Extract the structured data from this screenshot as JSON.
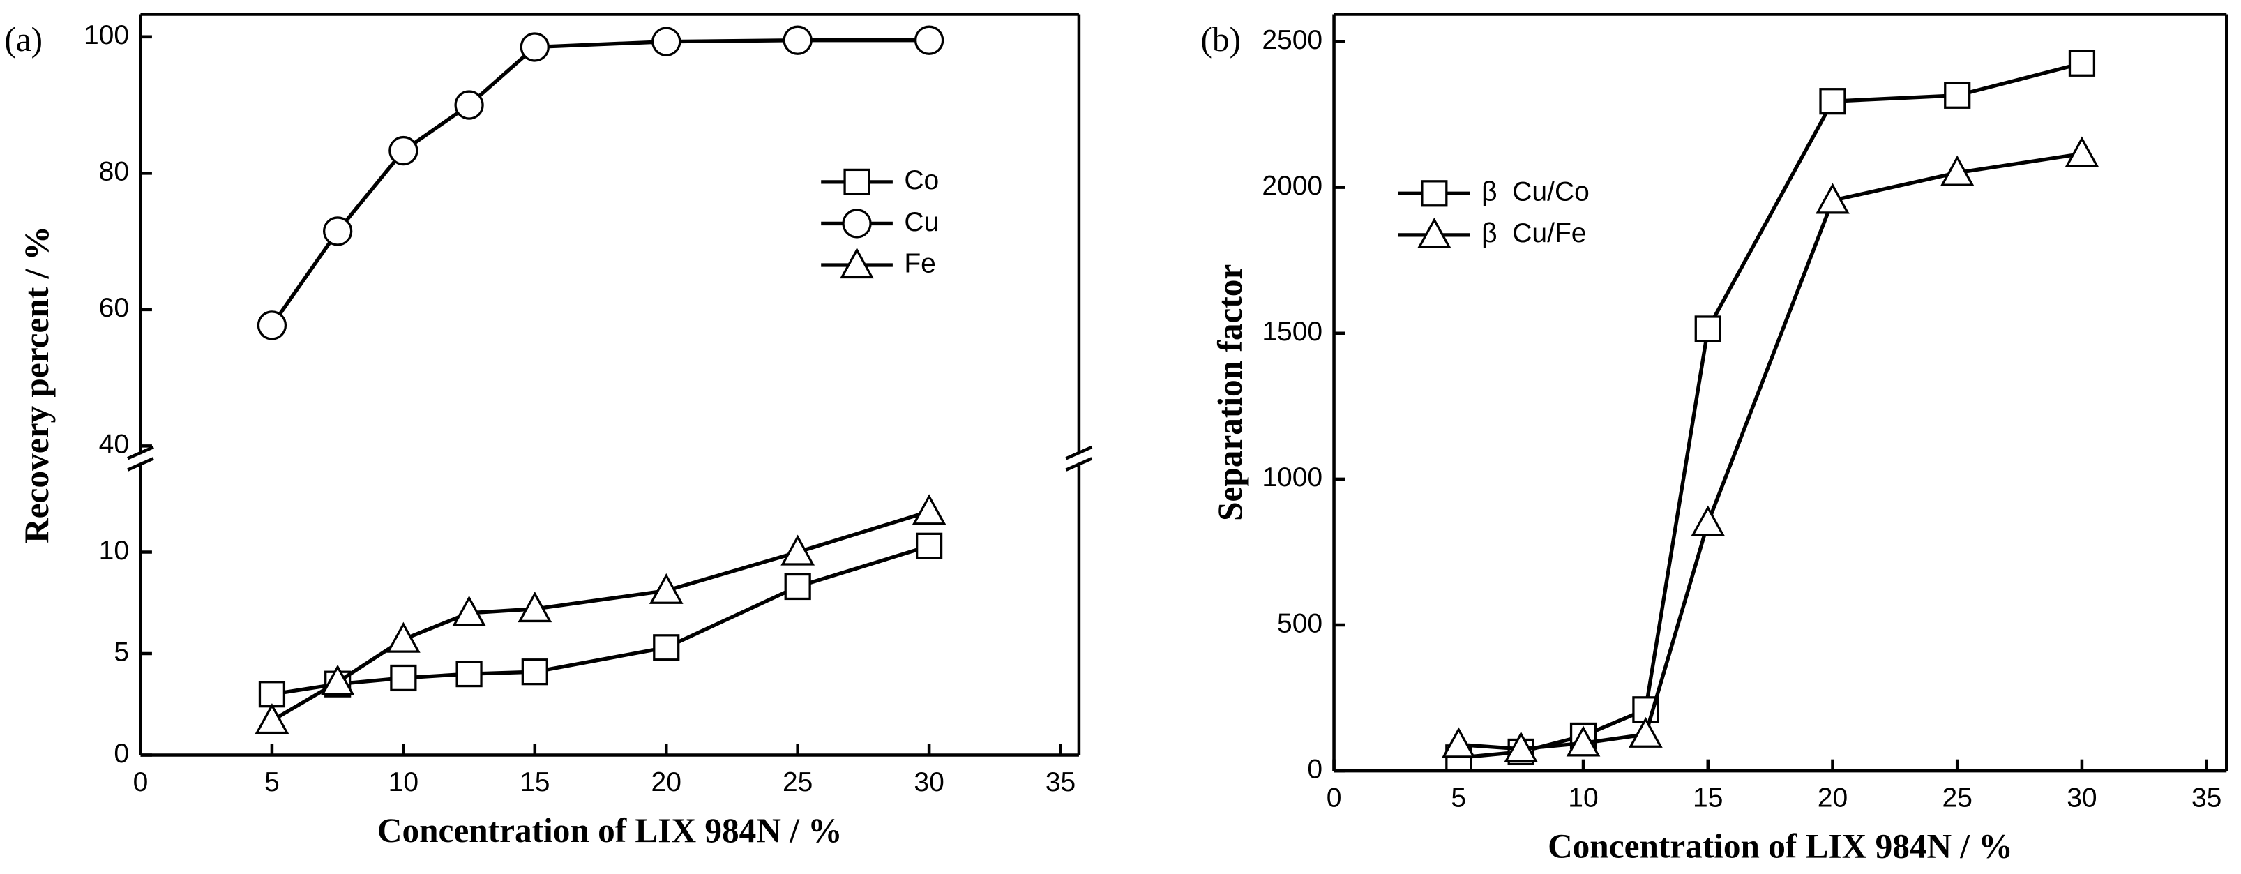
{
  "chart_data": [
    {
      "type": "line",
      "panel_label": "(a)",
      "x_label": "Concentration of LIX 984N / %",
      "y_label": "Recovery percent / %",
      "x": [
        5,
        7.5,
        10,
        12.5,
        15,
        20,
        25,
        30
      ],
      "series": [
        {
          "name": "Co",
          "color": "#000000",
          "marker": "square",
          "values": [
            3.0,
            3.5,
            3.8,
            4.0,
            4.1,
            5.3,
            8.3,
            10.3
          ]
        },
        {
          "name": "Cu",
          "color": "#000000",
          "marker": "circle",
          "axis": "upper",
          "values": [
            57.7,
            71.5,
            83.3,
            90.0,
            98.5,
            99.3,
            99.5,
            99.5
          ]
        },
        {
          "name": "Fe",
          "color": "#000000",
          "marker": "triangle",
          "values": [
            1.7,
            3.6,
            5.7,
            7.0,
            7.2,
            8.1,
            10.0,
            12.0
          ]
        }
      ],
      "xlim": [
        0,
        35.7
      ],
      "xticks": [
        0,
        5,
        10,
        15,
        20,
        25,
        30,
        35
      ],
      "ylim": [
        0,
        14.4
      ],
      "yticks": [
        0,
        5,
        10
      ],
      "ylim_upper": [
        38.8,
        103.3
      ],
      "yticks_upper": [
        40,
        60,
        80,
        100
      ],
      "legend": "upper right"
    },
    {
      "type": "line",
      "panel_label": "(b)",
      "x_label": "Concentration of LIX 984N / %",
      "y_label": "Separation factor",
      "x": [
        5,
        7.5,
        10,
        12.5,
        15,
        20,
        25,
        30
      ],
      "series": [
        {
          "name": "β  Cu/Co",
          "color": "#000000",
          "marker": "square",
          "values": [
            45,
            65,
            120,
            210,
            1515,
            2295,
            2315,
            2425
          ]
        },
        {
          "name": "β  Cu/Fe",
          "color": "#000000",
          "marker": "triangle",
          "values": [
            90,
            75,
            95,
            125,
            850,
            1955,
            2050,
            2115
          ]
        }
      ],
      "xlim": [
        0,
        35.8
      ],
      "xticks": [
        0,
        5,
        10,
        15,
        20,
        25,
        30,
        35
      ],
      "ylim": [
        0,
        2593
      ],
      "yticks": [
        0,
        500,
        1000,
        1500,
        2000,
        2500
      ],
      "legend": "upper left"
    }
  ]
}
